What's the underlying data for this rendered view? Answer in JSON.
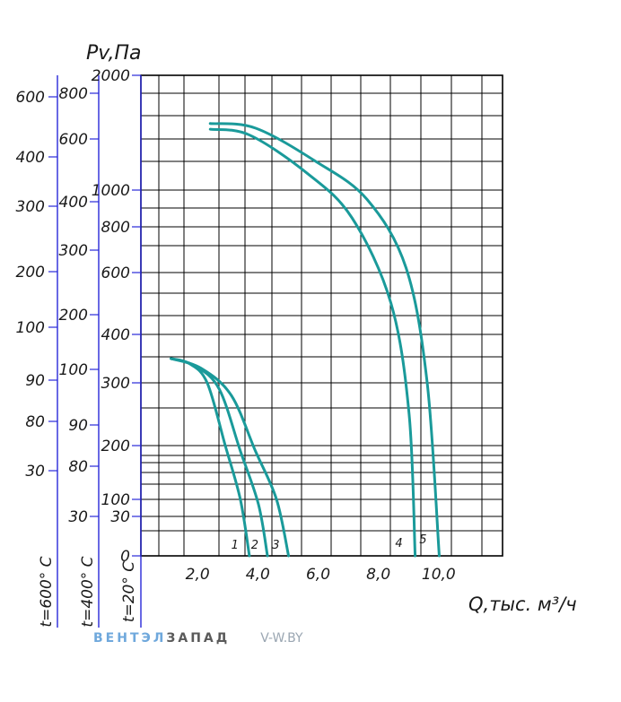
{
  "chart_data": {
    "type": "line",
    "ylabel": "Pv,Па",
    "xlabel": "Q,тыс. м³/ч",
    "x_ticks": [
      "2,0",
      "4,0",
      "6,0",
      "8,0",
      "10,0"
    ],
    "xlim": [
      0,
      12
    ],
    "y_scales": [
      {
        "label": "t=20° С",
        "ticks": [
          "0",
          "30",
          "100",
          "200",
          "300",
          "400",
          "600",
          "800",
          "1000",
          "2000"
        ]
      },
      {
        "label": "t=400° С",
        "ticks": [
          "30",
          "80",
          "90",
          "100",
          "200",
          "300",
          "400",
          "600",
          "800"
        ]
      },
      {
        "label": "t=600° С",
        "ticks": [
          "30",
          "80",
          "90",
          "100",
          "200",
          "300",
          "400",
          "600"
        ]
      }
    ],
    "series": [
      {
        "name": "1",
        "points": [
          [
            1.0,
            350
          ],
          [
            1.6,
            340
          ],
          [
            2.2,
            300
          ],
          [
            2.8,
            200
          ],
          [
            3.3,
            100
          ],
          [
            3.6,
            0
          ]
        ]
      },
      {
        "name": "2",
        "points": [
          [
            1.0,
            350
          ],
          [
            1.8,
            335
          ],
          [
            2.6,
            290
          ],
          [
            3.3,
            190
          ],
          [
            3.9,
            80
          ],
          [
            4.2,
            0
          ]
        ]
      },
      {
        "name": "3",
        "points": [
          [
            1.0,
            350
          ],
          [
            2.0,
            330
          ],
          [
            3.0,
            280
          ],
          [
            3.8,
            190
          ],
          [
            4.5,
            100
          ],
          [
            4.9,
            0
          ]
        ]
      },
      {
        "name": "4",
        "points": [
          [
            2.3,
            1530
          ],
          [
            3.6,
            1480
          ],
          [
            5.5,
            1150
          ],
          [
            7.0,
            850
          ],
          [
            8.3,
            500
          ],
          [
            8.9,
            250
          ],
          [
            9.1,
            0
          ]
        ]
      },
      {
        "name": "5",
        "points": [
          [
            2.3,
            1580
          ],
          [
            3.8,
            1540
          ],
          [
            5.8,
            1250
          ],
          [
            7.5,
            950
          ],
          [
            8.8,
            620
          ],
          [
            9.5,
            300
          ],
          [
            9.9,
            0
          ]
        ]
      }
    ],
    "grid": true,
    "curve_color": "#1a9a9a"
  },
  "watermark": {
    "brand_light": "ВЕНТЭЛ",
    "brand_dark": "ЗАПАД",
    "url": "V-W.BY"
  }
}
